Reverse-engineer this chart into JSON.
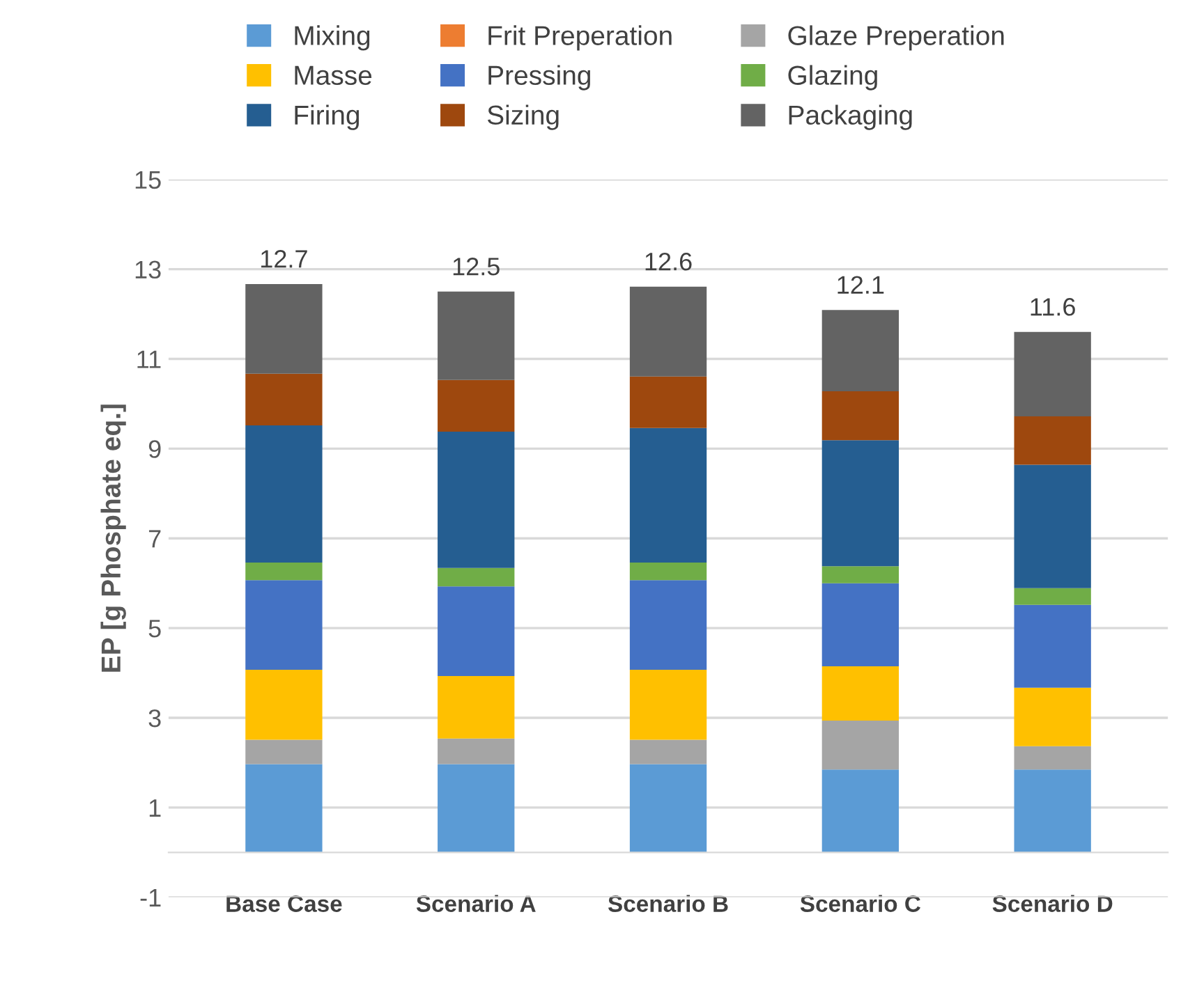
{
  "chart_data": {
    "type": "bar",
    "stacked": true,
    "ylabel": "EP [g Phosphate eq.]",
    "categories": [
      "Base Case",
      "Scenario A",
      "Scenario B",
      "Scenario C",
      "Scenario D"
    ],
    "series": [
      {
        "name": "Mixing",
        "color": "#5b9bd5",
        "values": [
          1.97,
          1.97,
          1.97,
          1.85,
          1.85
        ]
      },
      {
        "name": "Frit Preperation",
        "color": "#ed7d31",
        "values": [
          0,
          0,
          0,
          0,
          0
        ]
      },
      {
        "name": "Glaze Preperation",
        "color": "#a5a5a5",
        "values": [
          0.54,
          0.57,
          0.54,
          1.09,
          0.52
        ]
      },
      {
        "name": "Masse",
        "color": "#ffc000",
        "values": [
          1.56,
          1.39,
          1.56,
          1.21,
          1.3
        ]
      },
      {
        "name": "Pressing",
        "color": "#4472c4",
        "values": [
          2.0,
          2.0,
          2.0,
          1.85,
          1.85
        ]
      },
      {
        "name": "Glazing",
        "color": "#70ad47",
        "values": [
          0.39,
          0.41,
          0.39,
          0.38,
          0.37
        ]
      },
      {
        "name": "Firing",
        "color": "#255e91",
        "values": [
          3.06,
          3.04,
          3.0,
          2.81,
          2.75
        ]
      },
      {
        "name": "Sizing",
        "color": "#9e480e",
        "values": [
          1.15,
          1.15,
          1.15,
          1.09,
          1.08
        ]
      },
      {
        "name": "Packaging",
        "color": "#636363",
        "values": [
          2.0,
          1.97,
          2.0,
          1.81,
          1.88
        ]
      }
    ],
    "totals": [
      "12.7",
      "12.5",
      "12.6",
      "12.1",
      "11.6"
    ],
    "ylim": [
      -1,
      15
    ],
    "yticks": [
      -1,
      1,
      3,
      5,
      7,
      9,
      11,
      13,
      15
    ],
    "grid": "y",
    "legend": "top"
  }
}
